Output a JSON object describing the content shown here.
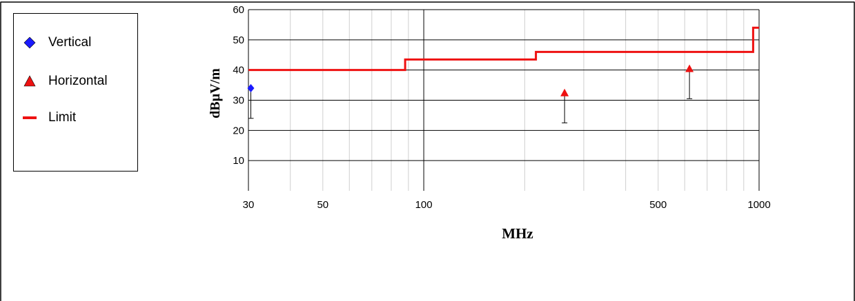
{
  "legend": {
    "items": [
      {
        "label": "Vertical",
        "symbol": "diamond",
        "color": "#1a1aff"
      },
      {
        "label": "Horizontal",
        "symbol": "triangle",
        "color": "#ee1111"
      },
      {
        "label": "Limit",
        "symbol": "line",
        "color": "#ee1111"
      }
    ]
  },
  "chart_data": {
    "type": "scatter",
    "xlabel": "MHz",
    "ylabel": "dBµV/m",
    "x_scale": "log",
    "xlim": [
      30,
      1000
    ],
    "ylim": [
      0,
      60
    ],
    "x_ticks": [
      30,
      50,
      100,
      500,
      1000
    ],
    "y_ticks": [
      10,
      20,
      30,
      40,
      50,
      60
    ],
    "grid": true,
    "legend_position": "left",
    "series": [
      {
        "name": "Vertical",
        "color": "#1a1aff",
        "marker": "diamond",
        "points": [
          {
            "x": 30.5,
            "y": 34,
            "low": 24
          }
        ]
      },
      {
        "name": "Horizontal",
        "color": "#ee1111",
        "marker": "triangle",
        "points": [
          {
            "x": 263,
            "y": 32,
            "low": 22.5
          },
          {
            "x": 620,
            "y": 40,
            "low": 30.5
          }
        ]
      },
      {
        "name": "Limit",
        "color": "#ee1111",
        "type": "step",
        "x": [
          30,
          88,
          88,
          216,
          216,
          960,
          960,
          1000
        ],
        "y": [
          40,
          40,
          43.5,
          43.5,
          46,
          46,
          54,
          54
        ]
      }
    ]
  }
}
